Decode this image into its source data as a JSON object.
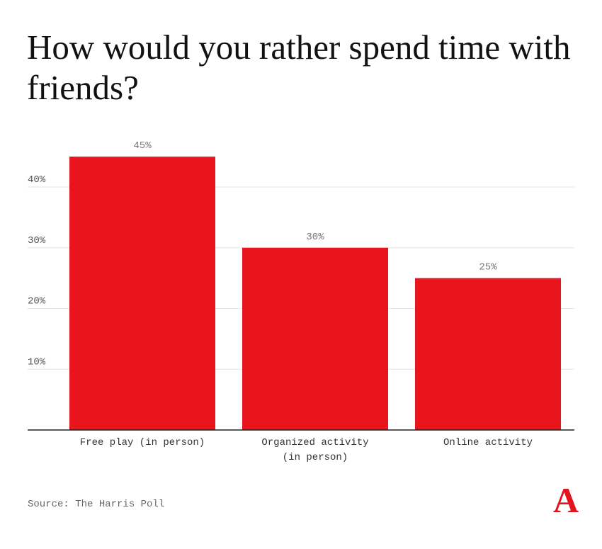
{
  "title": "How would you rather spend time with friends?",
  "source": "Source: The Harris Poll",
  "logo": "A",
  "colors": {
    "bar": "#e8151c",
    "grid": "#e6e6e6",
    "axis": "#222222",
    "logo": "#e3141d"
  },
  "chart_data": {
    "type": "bar",
    "title": "How would you rather spend time with friends?",
    "categories": [
      [
        "Free play (in person)"
      ],
      [
        "Organized activity",
        "(in person)"
      ],
      [
        "Online activity"
      ]
    ],
    "values": [
      45,
      30,
      25
    ],
    "data_labels": [
      "45%",
      "30%",
      "25%"
    ],
    "yticks": [
      10,
      20,
      30,
      40
    ],
    "ytick_labels": [
      "10%",
      "20%",
      "30%",
      "40%"
    ],
    "ylim": [
      0,
      47
    ],
    "grid": true,
    "xlabel": "",
    "ylabel": ""
  }
}
